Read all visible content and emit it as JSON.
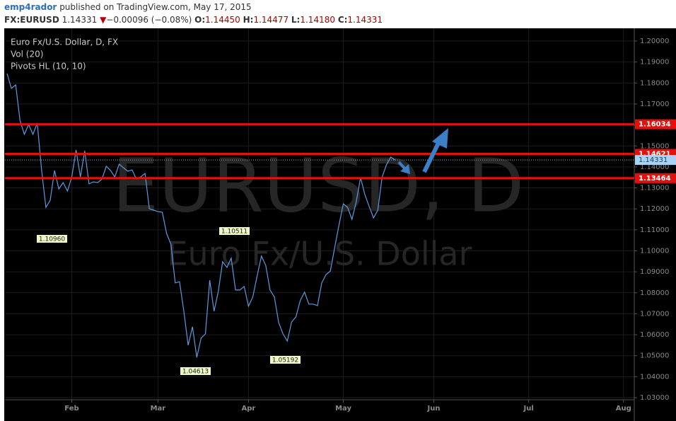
{
  "header": {
    "author": "emp4rador",
    "published": "published on TradingView.com, May 17, 2015",
    "symbol": "FX:EURUSD",
    "last": "1.14331",
    "direction": "▼",
    "change": "−0.00096 (−0.08%)",
    "open": [
      "O:",
      "1.14450"
    ],
    "high": [
      "H:",
      "1.14477"
    ],
    "low": [
      "L:",
      "1.14180"
    ],
    "close": [
      "C:",
      "1.14331"
    ]
  },
  "chart_data": {
    "type": "line",
    "title": "Euro Fx/U.S. Dollar, D, FX",
    "indicators": [
      "Vol (20)",
      "Pivots HL (10, 10)"
    ],
    "watermark": [
      "EURUSD, D",
      "Euro Fx/U.S. Dollar"
    ],
    "pivots": [
      "1.10960",
      "1.10511",
      "1.04613",
      "1.05192"
    ],
    "categories": [
      null,
      null,
      null,
      null,
      null,
      null,
      null,
      null,
      null,
      null,
      null,
      null,
      null,
      null,
      null,
      "Feb",
      null,
      null,
      null,
      null,
      null,
      null,
      null,
      null,
      null,
      null,
      null,
      null,
      null,
      null,
      null,
      null,
      null,
      null,
      null,
      "Mar",
      null,
      null,
      null,
      null,
      null,
      null,
      null,
      null,
      null,
      null,
      null,
      null,
      null,
      null,
      null,
      null,
      null,
      null,
      null,
      null,
      "Apr",
      null,
      null,
      null,
      null,
      null,
      null,
      null,
      null,
      null,
      null,
      null,
      null,
      null,
      null,
      null,
      null,
      null,
      null,
      null,
      null,
      null,
      "May",
      null,
      null,
      null,
      null,
      null,
      null,
      null,
      null,
      null,
      null,
      null,
      null,
      null,
      null,
      null,
      null,
      null,
      null,
      null,
      null,
      "Jun",
      null,
      null,
      null,
      null,
      null,
      null,
      null,
      null,
      null,
      null,
      null,
      null,
      null,
      null,
      null,
      null,
      null,
      null,
      null,
      null,
      null,
      "Jul",
      null,
      null,
      null,
      null,
      null,
      null,
      null,
      null,
      null,
      null,
      null,
      null,
      null,
      null,
      null,
      null,
      null,
      null,
      null,
      null,
      null,
      "Aug",
      null,
      null
    ],
    "series": [
      {
        "name": "EURUSD",
        "color": "#5b9be0",
        "values": [
          1.1845,
          1.1774,
          1.1791,
          1.1622,
          1.1555,
          1.1602,
          1.1555,
          1.1609,
          1.1386,
          1.1207,
          1.1241,
          1.1383,
          1.1295,
          1.1325,
          1.1285,
          1.1352,
          1.1481,
          1.1352,
          1.1477,
          1.1319,
          1.1329,
          1.1325,
          1.1342,
          1.1403,
          1.1383,
          1.1352,
          1.1413,
          1.1396,
          1.1379,
          1.1386,
          1.1342,
          1.1352,
          1.1369,
          1.1201,
          1.1194,
          1.1187,
          1.1184,
          1.1083,
          1.1032,
          1.0847,
          1.0853,
          1.0712,
          1.055,
          1.0638,
          1.0492,
          1.0584,
          1.0604,
          1.086,
          1.0712,
          1.0806,
          1.0948,
          1.0921,
          1.0965,
          1.0813,
          1.0813,
          1.083,
          1.0736,
          1.078,
          1.088,
          1.0975,
          1.0931,
          1.0813,
          1.078,
          1.0658,
          1.0604,
          1.057,
          1.0661,
          1.0685,
          1.0763,
          1.0803,
          1.0746,
          1.0746,
          1.0739,
          1.0847,
          1.0887,
          1.0904,
          1.1015,
          1.1123,
          1.1224,
          1.1207,
          1.115,
          1.1234,
          1.1349,
          1.1268,
          1.1211,
          1.1157,
          1.1194,
          1.1352,
          1.141,
          1.1447,
          1.1433,
          null,
          null,
          null,
          null,
          null,
          null,
          null,
          null,
          null,
          null,
          null,
          null,
          null,
          null,
          null,
          null,
          null,
          null,
          null,
          null,
          null,
          null,
          null,
          null,
          null,
          null,
          null,
          null,
          null,
          null,
          null,
          null,
          null,
          null,
          null,
          null,
          null,
          null,
          null,
          null,
          null,
          null,
          null,
          null,
          null,
          null,
          null,
          null,
          null,
          null,
          null,
          null,
          null,
          null,
          null
        ]
      }
    ],
    "levels": [
      {
        "value": 1.16034,
        "color": "#e31010"
      },
      {
        "value": 1.14621,
        "color": "#e31010"
      },
      {
        "value": 1.13464,
        "color": "#e31010"
      }
    ],
    "price": {
      "value": 1.14331,
      "color": "#a9d3f5"
    },
    "ylim": [
      1.029,
      1.2054
    ],
    "yticks": [
      {
        "value": 1.2,
        "label": "1.20000"
      },
      {
        "value": 1.19,
        "label": "1.19000"
      },
      {
        "value": 1.18,
        "label": "1.18000"
      },
      {
        "value": 1.17,
        "label": "1.17000"
      },
      {
        "value": 1.16,
        "label": "1.16000"
      },
      {
        "value": 1.15,
        "label": "1.15000"
      },
      {
        "value": 1.14,
        "label": "1.14000"
      },
      {
        "value": 1.13,
        "label": "1.13000"
      },
      {
        "value": 1.12,
        "label": "1.12000"
      },
      {
        "value": 1.11,
        "label": "1.11000"
      },
      {
        "value": 1.1,
        "label": "1.10000"
      },
      {
        "value": 1.09,
        "label": "1.09000"
      },
      {
        "value": 1.08,
        "label": "1.08000"
      },
      {
        "value": 1.07,
        "label": "1.07000"
      },
      {
        "value": 1.06,
        "label": "1.06000"
      },
      {
        "value": 1.05,
        "label": "1.05000"
      },
      {
        "value": 1.04,
        "label": "1.04000"
      },
      {
        "value": 1.03,
        "label": "1.03000"
      }
    ],
    "grid": true
  }
}
